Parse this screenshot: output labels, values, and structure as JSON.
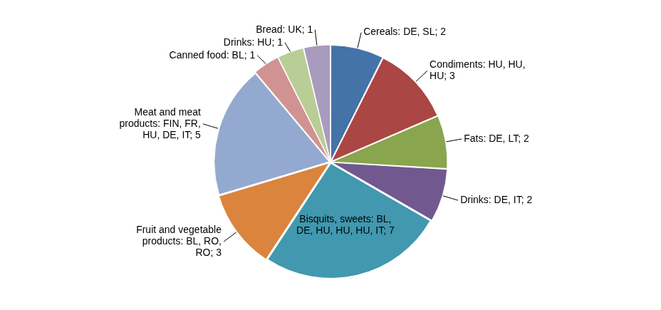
{
  "chart_data": {
    "type": "pie",
    "categories": [
      "Cereals: DE, SL; 2",
      "Condiments: HU, HU, HU; 3",
      "Fats: DE, LT; 2",
      "Drinks: DE, IT; 2",
      "Bisquits, sweets: BL, DE, HU, HU, HU, IT; 7",
      "Fruit and vegetable products: BL, RO, RO; 3",
      "Meat and meat products: FIN, FR, HU, DE, IT; 5",
      "Canned food: BL; 1",
      "Drinks: HU; 1",
      "Bread: UK; 1"
    ],
    "values": [
      2,
      3,
      2,
      2,
      7,
      3,
      5,
      1,
      1,
      1
    ],
    "colors": [
      "#4572A7",
      "#AA4643",
      "#89A54E",
      "#71588F",
      "#4198AF",
      "#DB843D",
      "#93A9CF",
      "#D19392",
      "#B9CD96",
      "#A99BBD"
    ]
  }
}
